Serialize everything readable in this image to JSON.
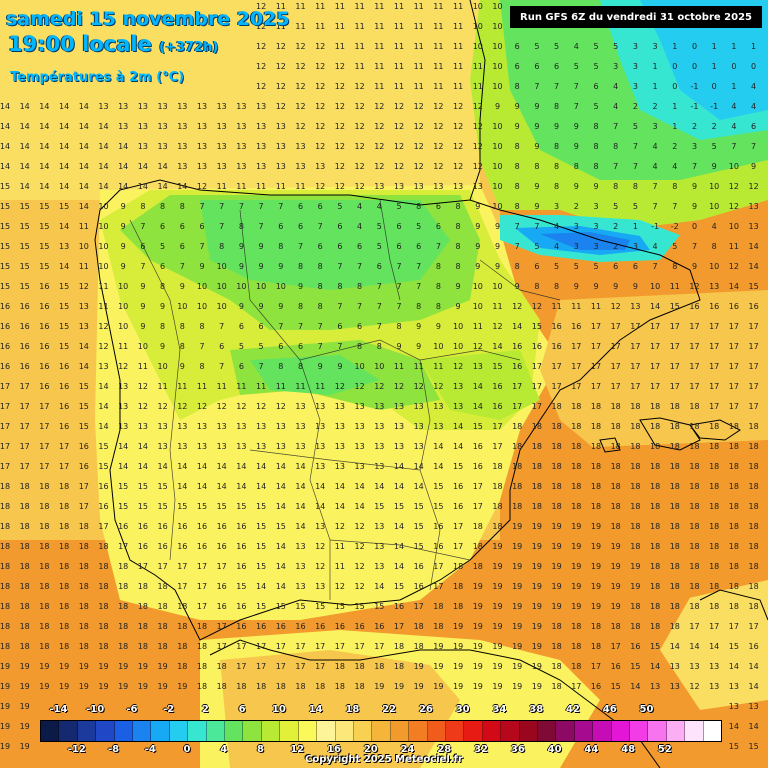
{
  "header": {
    "date_line": "samedi 15 novembre 2025",
    "time_line": "19:00 locale",
    "time_offset": "(+372h)",
    "variable": "Températures à 2m (°C)",
    "run_info": "Run GFS 6Z du vendredi 31 octobre 2025"
  },
  "legend": {
    "labels_top": [
      "-14",
      "-10",
      "-6",
      "-2",
      "2",
      "6",
      "10",
      "14",
      "18",
      "22",
      "26",
      "30",
      "34",
      "38",
      "42",
      "46",
      "50"
    ],
    "labels_bottom": [
      "-12",
      "-8",
      "-4",
      "0",
      "4",
      "8",
      "12",
      "16",
      "20",
      "24",
      "28",
      "32",
      "36",
      "40",
      "44",
      "48",
      "52"
    ],
    "colors": [
      "#0b1a46",
      "#14296f",
      "#1c3a9b",
      "#1f47c6",
      "#1b5fe4",
      "#1a83f0",
      "#18a9f5",
      "#24cdf0",
      "#37e6d0",
      "#4be89a",
      "#63e35e",
      "#8ee33e",
      "#b9ea33",
      "#e2f03a",
      "#fbf85a",
      "#fdf49a",
      "#fbe77a",
      "#f8d052",
      "#f5b43a",
      "#f39a2c",
      "#f27d22",
      "#f05c1c",
      "#ee3a18",
      "#e81a14",
      "#d20a18",
      "#b5081c",
      "#99061e",
      "#7f0a33",
      "#8c0a64",
      "#a60a8e",
      "#c60cb4",
      "#e416d6",
      "#f23ce6",
      "#f774ee",
      "#fcaef5",
      "#fde3fb",
      "#ffffff"
    ]
  },
  "map": {
    "temperature_rows": [
      "12 12 12 12 12 12 12 12 12 12 12 12 12 12 11 11 11 11 11 11 11 11 11 11 10 10 10 10 9 8 7 7 6 5 4 3 2 1 0 0",
      "13 13 13 13 12 12 12 12 12 12 12 12 12 12 11 11 11 11 11 11 11 11 11 11 10 10 7 7 6 5 5 4 3 1 0 2 1 1 1",
      "13 13 13 13 13 13 13 12 12 12 12 12 12 12 12 12 12 11 11 11 11 11 11 11 10 10 6 5 5 4 5 5 3 3 1 0 1 1 1 1",
      "13 13 13 13 13 13 13 13 12 12 12 12 12 12 12 12 12 12 11 11 11 11 11 11 11 10 6 6 6 5 5 3 3 1 0 0 1 0 0",
      "14 13 13 13 13 13 13 13 13 12 12 12 12 12 12 12 12 12 12 11 11 11 11 11 11 10 8 7 7 7 6 4 3 1 0 -1 0 1 4",
      "14 14 14 14 14 13 13 13 13 13 13 13 13 13 12 12 12 12 12 12 12 12 12 12 12 9 9 9 8 7 5 4 2 2 1 -1 -1 4 4",
      "14 14 14 14 14 14 13 13 13 13 13 13 13 13 13 12 12 12 12 12 12 12 12 12 12 10 9 9 9 9 8 7 5 3 1 2 2 4 6",
      "14 14 14 14 14 14 14 13 13 13 13 13 13 13 13 13 12 12 12 12 12 12 12 12 12 10 8 9 8 9 8 8 7 4 2 3 5 7 7",
      "14 14 14 14 14 14 14 14 14 13 13 13 13 13 13 13 13 12 12 12 12 12 12 12 12 10 8 8 8 8 8 7 7 4 4 7 9 10 9",
      "15 14 14 14 14 14 14 14 14 14 12 11 11 11 11 11 12 12 12 13 13 13 13 13 13 10 8 9 8 9 9 8 8 7 8 9 10 12 12",
      "15 15 15 15 14 10 9 8 8 8 7 7 7 7 7 6 6 5 4 4 5 8 6 8 9 10 8 9 3 2 3 5 5 7 7 9 10 12 13",
      "15 15 15 14 11 10 9 7 6 6 6 7 8 7 6 6 7 6 4 5 6 5 6 8 9 9 7 7 4 3 3 2 1 -1 -2 0 4 10 13 15",
      "15 15 15 13 10 10 9 6 5 6 7 8 9 9 8 7 6 6 6 5 6 6 7 8 9 9 7 5 4 3 3 2 3 4 5 7 8 11 14 15",
      "15 15 15 14 11 10 9 7 6 7 9 10 9 9 9 8 8 7 7 6 7 7 8 8 9 9 8 6 5 5 5 6 6 7 8 9 10 12 14 15",
      "15 15 16 15 12 11 10 9 8 9 10 10 10 10 10 9 8 8 8 7 7 7 8 9 10 10 9 8 8 9 9 9 9 10 11 12 13 14 15 16",
      "16 16 16 15 13 11 10 9 9 10 10 10 9 9 9 8 8 7 7 7 7 8 8 9 10 11 12 12 11 11 11 12 13 14 15 16 16 16 16 16",
      "16 16 16 15 13 12 10 9 8 8 8 7 6 6 7 7 7 6 6 7 8 9 9 10 11 12 14 15 16 16 17 17 17 17 17 17 17 17 17 17",
      "16 16 16 15 14 12 11 10 9 8 7 6 5 5 6 6 7 7 8 8 9 9 10 10 12 14 16 16 16 17 17 17 17 17 17 17 17 17 17 17",
      "16 16 16 16 14 13 12 11 10 9 8 7 6 7 8 8 9 9 10 10 11 11 11 12 13 15 16 17 17 17 17 17 17 17 17 17 17 17 17 17",
      "17 17 16 16 15 14 13 12 11 11 11 11 11 11 11 11 11 12 12 12 12 12 12 13 14 16 17 17 17 17 17 17 17 17 17 17 17 17 17 17",
      "17 17 17 16 15 14 13 12 12 12 12 12 12 12 12 13 13 13 13 13 13 13 13 13 14 16 17 17 18 18 18 18 18 18 18 18 17 17 17 17",
      "17 17 17 16 15 14 13 13 13 13 13 13 13 13 13 13 13 13 13 13 13 13 13 14 15 17 18 18 18 18 18 18 18 18 18 18 18 18 18 18",
      "17 17 17 17 16 15 14 14 13 13 13 13 13 13 13 13 13 13 13 13 13 13 14 14 16 17 18 18 18 18 18 18 18 18 18 18 18 18 18 18",
      "17 17 17 17 16 15 14 14 14 14 14 14 14 14 14 14 13 13 13 13 14 14 14 15 16 18 18 18 18 18 18 18 18 18 18 18 18 18 18 18",
      "18 18 18 18 17 16 15 15 15 14 14 14 14 14 14 14 14 14 14 14 14 14 15 16 17 18 18 18 18 18 18 18 18 18 18 18 18 18 18 18",
      "18 18 18 18 17 16 15 15 15 15 15 15 15 15 14 14 14 14 14 15 15 15 15 16 17 18 18 18 18 18 18 18 18 18 18 18 18 18 18 18",
      "18 18 18 18 18 17 16 16 16 16 16 16 16 15 15 14 13 12 12 13 14 15 16 17 18 18 19 19 19 19 19 18 18 18 18 18 18 18 18 18",
      "18 18 18 18 18 18 17 16 16 16 16 16 16 15 14 13 12 11 12 13 14 15 16 17 18 19 19 19 19 19 19 19 18 18 18 18 18 18 18 18",
      "18 18 18 18 18 18 18 17 17 17 17 17 16 15 14 13 12 11 12 13 14 16 17 18 18 19 19 19 19 19 19 19 19 18 18 18 18 18 18 18",
      "18 18 18 18 18 18 18 18 18 17 17 16 15 14 14 13 13 12 12 14 15 16 17 18 19 19 19 19 19 19 19 19 19 18 18 18 18 18 18 18",
      "18 18 18 18 18 18 18 18 18 18 17 16 16 15 15 15 15 15 15 15 16 17 18 18 19 19 19 19 19 19 19 19 18 18 18 18 18 18 18 18",
      "18 18 18 18 18 18 18 18 18 18 18 17 16 16 16 16 16 16 16 16 17 18 18 19 19 19 19 19 18 18 18 18 18 18 18 17 17 17 17 16",
      "18 18 18 18 18 18 18 18 18 18 18 17 17 17 17 17 17 17 17 17 18 18 19 19 19 19 19 19 18 18 18 17 16 15 14 14 14 15 16 15",
      "19 19 19 19 19 19 19 19 19 18 18 18 17 17 17 17 17 18 18 18 18 19 19 19 19 19 19 19 18 18 17 16 15 14 13 13 13 14 14 15",
      "19 19 19 19 19 19 19 19 19 19 18 18 18 18 18 18 18 18 18 19 19 19 19 19 19 19 19 19 18 17 16 15 14 13 13 12 13 13 14 14",
      "19 19 19 19 19 19 19 19 19 19 19 18 18 18 18 18 18 18 19 19 19 19 19 19 19 19 19 18 17 16 15 14 14 13 13 13 13 13 13 13",
      "19 19 19 19 19 19 19 19 19 19 19 19 18 18 18 18 19 19 19 19 19 19 19 19 19 19 18 18 17 16 15 15 14 14 14 14 14 14 14 14",
      "19 19 19 19 19 19 19 19 19 19 19 19 19 19 19 19 19 19 19 19 19 19 19 19 19 19 19 18 18 17 16 16 15 15 15 15 15 15 15 15"
    ]
  },
  "copyright": "Copyright 2025 Meteociel.fr"
}
